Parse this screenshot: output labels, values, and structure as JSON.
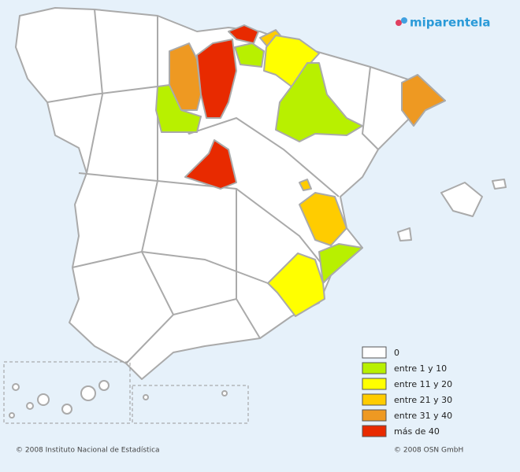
{
  "logo": "miparentela",
  "legend": [
    {
      "label": "0",
      "color": "#ffffff"
    },
    {
      "label": "entre 1 y 10",
      "color": "#b8f000"
    },
    {
      "label": "entre 11 y 20",
      "color": "#ffff00"
    },
    {
      "label": "entre 21 y 30",
      "color": "#ffcc00"
    },
    {
      "label": "entre 31 y 40",
      "color": "#ee9922"
    },
    {
      "label": "más de 40",
      "color": "#e82a00"
    }
  ],
  "credits": {
    "left": "© 2008 Instituto Nacional de Estadística",
    "right": "© 2008 OSN GmbH"
  }
}
